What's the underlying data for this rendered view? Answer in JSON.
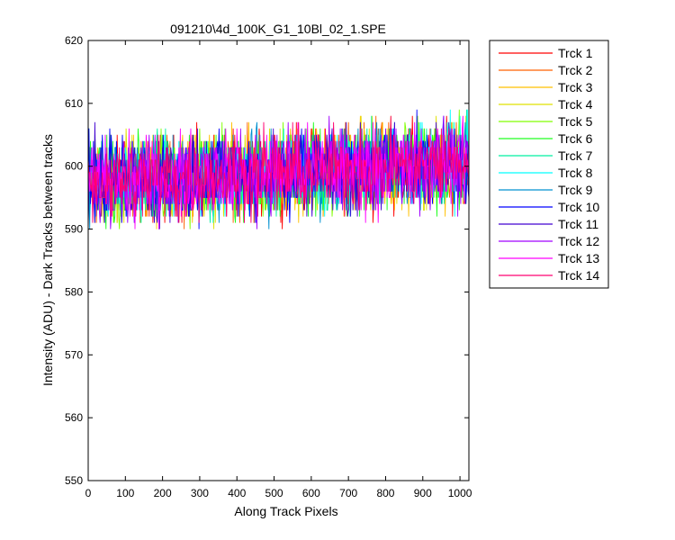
{
  "chart_data": {
    "type": "line",
    "title": "091210\\4d_100K_G1_10Bl_02_1.SPE",
    "xlabel": "Along Track Pixels",
    "ylabel": "Intensity (ADU) - Dark Tracks between tracks",
    "xlim": [
      0,
      1024
    ],
    "ylim": [
      550,
      620
    ],
    "xticks": [
      0,
      100,
      200,
      300,
      400,
      500,
      600,
      700,
      800,
      900,
      1000
    ],
    "yticks": [
      550,
      560,
      570,
      580,
      590,
      600,
      610,
      620
    ],
    "grid": false,
    "legend_position": "outside-right",
    "series_model": {
      "description_points": [
        {
          "x": 0,
          "mean": 597.5
        },
        {
          "x": 1024,
          "mean": 600.5
        }
      ],
      "min_observed": 590,
      "max_observed": 612,
      "noise_halfwidth": 5
    },
    "series": [
      {
        "name": "Trck 1",
        "color": "#ff0000"
      },
      {
        "name": "Trck 2",
        "color": "#ff6000"
      },
      {
        "name": "Trck 3",
        "color": "#ffc000"
      },
      {
        "name": "Trck 4",
        "color": "#dfe000"
      },
      {
        "name": "Trck 5",
        "color": "#80ff00"
      },
      {
        "name": "Trck 6",
        "color": "#20ff20"
      },
      {
        "name": "Trck 7",
        "color": "#00f0a0"
      },
      {
        "name": "Trck 8",
        "color": "#00ffff"
      },
      {
        "name": "Trck 9",
        "color": "#0090d0"
      },
      {
        "name": "Trck 10",
        "color": "#0000ff"
      },
      {
        "name": "Trck 11",
        "color": "#4000d0"
      },
      {
        "name": "Trck 12",
        "color": "#a000ff"
      },
      {
        "name": "Trck 13",
        "color": "#ff00ff"
      },
      {
        "name": "Trck 14",
        "color": "#ff0070"
      }
    ]
  }
}
